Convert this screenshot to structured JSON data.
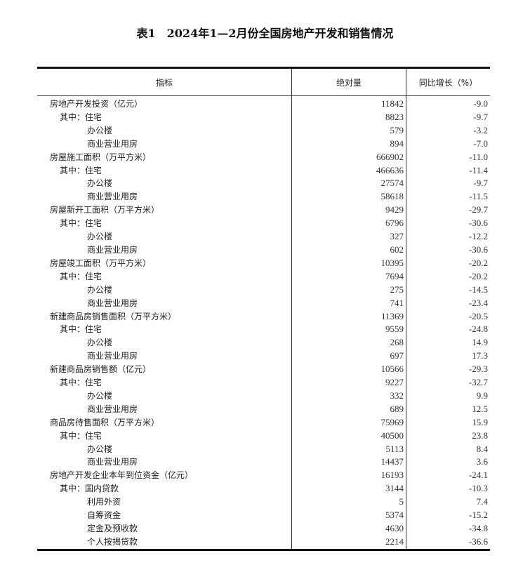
{
  "title": "表1　2024年1—2月份全国房地产开发和销售情况",
  "headers": [
    "指标",
    "绝对量",
    "同比增长（%）"
  ],
  "rows": [
    {
      "level": 0,
      "prefix": "",
      "label": "房地产开发投资（亿元）",
      "value": "11842",
      "yoy": "-9.0"
    },
    {
      "level": 1,
      "prefix": "其中：",
      "label": "住宅",
      "value": "8823",
      "yoy": "-9.7"
    },
    {
      "level": 2,
      "prefix": "",
      "label": "办公楼",
      "value": "579",
      "yoy": "-3.2"
    },
    {
      "level": 2,
      "prefix": "",
      "label": "商业营业用房",
      "value": "894",
      "yoy": "-7.0"
    },
    {
      "level": 0,
      "prefix": "",
      "label": "房屋施工面积（万平方米）",
      "value": "666902",
      "yoy": "-11.0"
    },
    {
      "level": 1,
      "prefix": "其中：",
      "label": "住宅",
      "value": "466636",
      "yoy": "-11.4"
    },
    {
      "level": 2,
      "prefix": "",
      "label": "办公楼",
      "value": "27574",
      "yoy": "-9.7"
    },
    {
      "level": 2,
      "prefix": "",
      "label": "商业营业用房",
      "value": "58618",
      "yoy": "-11.5"
    },
    {
      "level": 0,
      "prefix": "",
      "label": "房屋新开工面积（万平方米）",
      "value": "9429",
      "yoy": "-29.7"
    },
    {
      "level": 1,
      "prefix": "其中：",
      "label": "住宅",
      "value": "6796",
      "yoy": "-30.6"
    },
    {
      "level": 2,
      "prefix": "",
      "label": "办公楼",
      "value": "327",
      "yoy": "-12.2"
    },
    {
      "level": 2,
      "prefix": "",
      "label": "商业营业用房",
      "value": "602",
      "yoy": "-30.6"
    },
    {
      "level": 0,
      "prefix": "",
      "label": "房屋竣工面积（万平方米）",
      "value": "10395",
      "yoy": "-20.2"
    },
    {
      "level": 1,
      "prefix": "其中：",
      "label": "住宅",
      "value": "7694",
      "yoy": "-20.2"
    },
    {
      "level": 2,
      "prefix": "",
      "label": "办公楼",
      "value": "275",
      "yoy": "-14.5"
    },
    {
      "level": 2,
      "prefix": "",
      "label": "商业营业用房",
      "value": "741",
      "yoy": "-23.4"
    },
    {
      "level": 0,
      "prefix": "",
      "label": "新建商品房销售面积（万平方米）",
      "value": "11369",
      "yoy": "-20.5"
    },
    {
      "level": 1,
      "prefix": "其中：",
      "label": "住宅",
      "value": "9559",
      "yoy": "-24.8"
    },
    {
      "level": 2,
      "prefix": "",
      "label": "办公楼",
      "value": "268",
      "yoy": "14.9"
    },
    {
      "level": 2,
      "prefix": "",
      "label": "商业营业用房",
      "value": "697",
      "yoy": "17.3"
    },
    {
      "level": 0,
      "prefix": "",
      "label": "新建商品房销售额（亿元）",
      "value": "10566",
      "yoy": "-29.3"
    },
    {
      "level": 1,
      "prefix": "其中：",
      "label": "住宅",
      "value": "9227",
      "yoy": "-32.7"
    },
    {
      "level": 2,
      "prefix": "",
      "label": "办公楼",
      "value": "332",
      "yoy": "9.9"
    },
    {
      "level": 2,
      "prefix": "",
      "label": "商业营业用房",
      "value": "689",
      "yoy": "12.5"
    },
    {
      "level": 0,
      "prefix": "",
      "label": "商品房待售面积（万平方米）",
      "value": "75969",
      "yoy": "15.9"
    },
    {
      "level": 1,
      "prefix": "其中：",
      "label": "住宅",
      "value": "40500",
      "yoy": "23.8"
    },
    {
      "level": 2,
      "prefix": "",
      "label": "办公楼",
      "value": "5113",
      "yoy": "8.4"
    },
    {
      "level": 2,
      "prefix": "",
      "label": "商业营业用房",
      "value": "14437",
      "yoy": "3.6"
    },
    {
      "level": 0,
      "prefix": "",
      "label": "房地产开发企业本年到位资金（亿元）",
      "value": "16193",
      "yoy": "-24.1"
    },
    {
      "level": 1,
      "prefix": "其中：",
      "label": "国内贷款",
      "value": "3144",
      "yoy": "-10.3"
    },
    {
      "level": 2,
      "prefix": "",
      "label": "利用外资",
      "value": "5",
      "yoy": "7.4"
    },
    {
      "level": 2,
      "prefix": "",
      "label": "自筹资金",
      "value": "5374",
      "yoy": "-15.2"
    },
    {
      "level": 2,
      "prefix": "",
      "label": "定金及预收款",
      "value": "4630",
      "yoy": "-34.8"
    },
    {
      "level": 2,
      "prefix": "",
      "label": "个人按揭贷款",
      "value": "2214",
      "yoy": "-36.6"
    }
  ]
}
